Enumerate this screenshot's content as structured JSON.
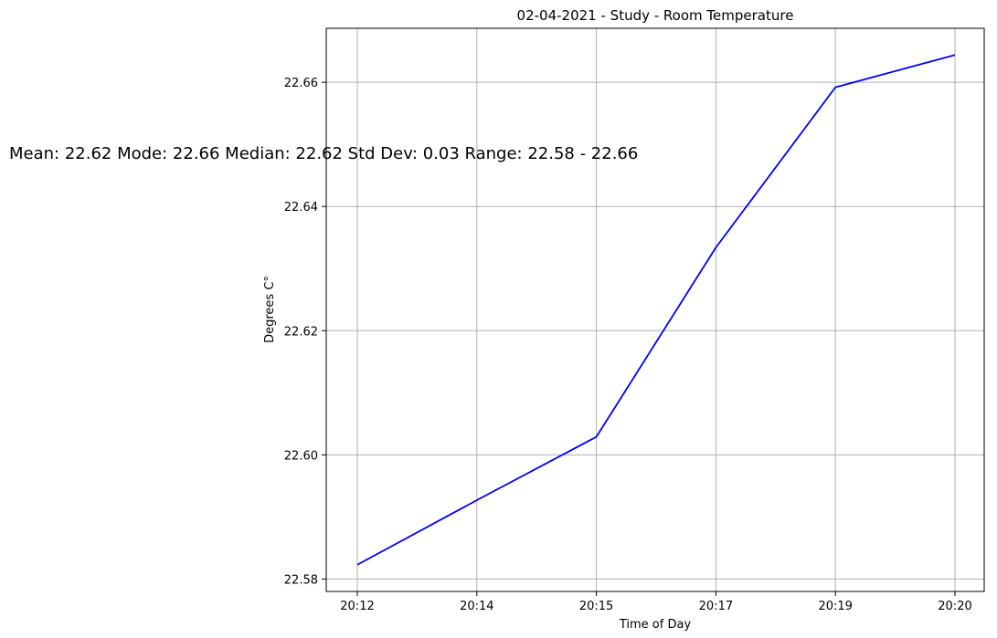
{
  "chart_data": {
    "type": "line",
    "title": "02-04-2021 - Study - Room Temperature",
    "xlabel": "Time of Day",
    "ylabel": "Degrees C°",
    "categories": [
      "20:12",
      "20:14",
      "20:15",
      "20:17",
      "20:19",
      "20:20"
    ],
    "series": [
      {
        "values": [
          22.5823,
          22.5927,
          22.6029,
          22.6334,
          22.6592,
          22.6644
        ],
        "color": "#0000ff"
      }
    ],
    "yticks": [
      "22.58",
      "22.60",
      "22.62",
      "22.64",
      "22.66"
    ],
    "ytick_values": [
      22.58,
      22.6,
      22.62,
      22.64,
      22.66
    ],
    "ylim": [
      22.578,
      22.6687
    ],
    "grid": true,
    "annotation": "Mean: 22.62 Mode: 22.66 Median: 22.62 Std Dev: 0.03 Range: 22.58 - 22.66"
  }
}
